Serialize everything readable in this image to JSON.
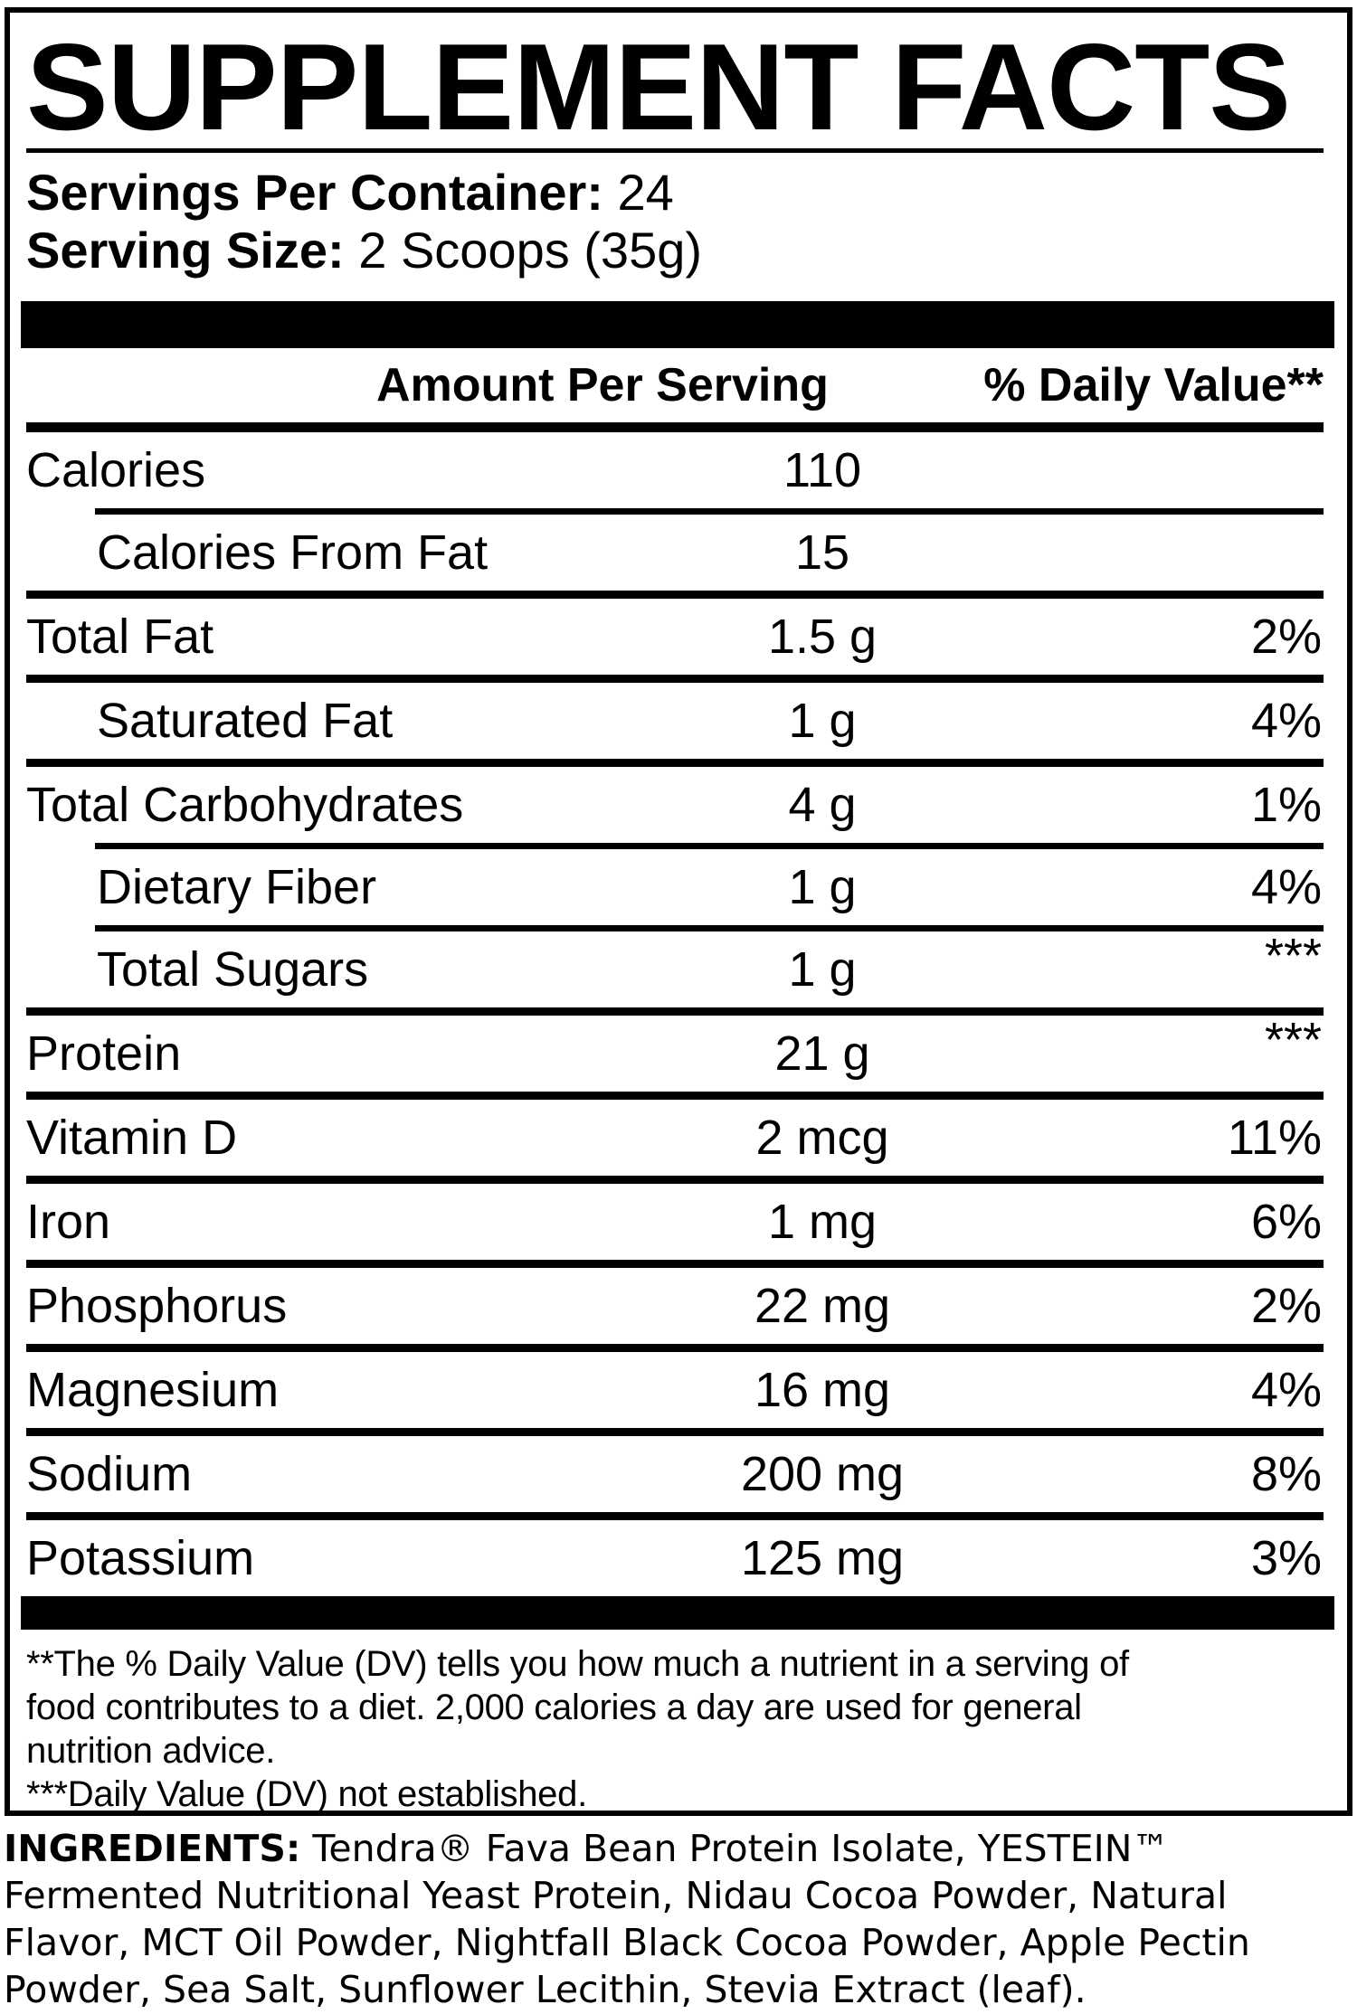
{
  "panel": {
    "title": "SUPPLEMENT FACTS",
    "servings_per_container": {
      "label": "Servings Per Container:",
      "value": "24"
    },
    "serving_size": {
      "label": "Serving Size:",
      "value": "2 Scoops (35g)"
    },
    "columns": {
      "amount": "Amount Per Serving",
      "daily_value": "% Daily Value**"
    },
    "rows": [
      {
        "label": "Calories",
        "indent": false,
        "amount": "110",
        "dv": "",
        "sep": "indent"
      },
      {
        "label": "Calories From Fat",
        "indent": true,
        "amount": "15",
        "dv": "",
        "sep": "full"
      },
      {
        "label": "Total Fat",
        "indent": false,
        "amount": "1.5 g",
        "dv": "2%",
        "sep": "full"
      },
      {
        "label": "Saturated Fat",
        "indent": true,
        "amount": "1 g",
        "dv": "4%",
        "sep": "full"
      },
      {
        "label": "Total Carbohydrates",
        "indent": false,
        "amount": "4 g",
        "dv": "1%",
        "sep": "indent"
      },
      {
        "label": "Dietary Fiber",
        "indent": true,
        "amount": "1 g",
        "dv": "4%",
        "sep": "indent"
      },
      {
        "label": "Total Sugars",
        "indent": true,
        "amount": "1 g",
        "dv": "***",
        "sep": "full"
      },
      {
        "label": "Protein",
        "indent": false,
        "amount": "21 g",
        "dv": "***",
        "sep": "full"
      },
      {
        "label": "Vitamin D",
        "indent": false,
        "amount": "2 mcg",
        "dv": "11%",
        "sep": "full"
      },
      {
        "label": "Iron",
        "indent": false,
        "amount": "1 mg",
        "dv": "6%",
        "sep": "full"
      },
      {
        "label": "Phosphorus",
        "indent": false,
        "amount": "22 mg",
        "dv": "2%",
        "sep": "full"
      },
      {
        "label": "Magnesium",
        "indent": false,
        "amount": "16 mg",
        "dv": "4%",
        "sep": "full"
      },
      {
        "label": "Sodium",
        "indent": false,
        "amount": "200 mg",
        "dv": "8%",
        "sep": "full"
      },
      {
        "label": "Potassium",
        "indent": false,
        "amount": "125 mg",
        "dv": "3%",
        "sep": "none"
      }
    ],
    "footnotes": [
      "**The % Daily Value (DV) tells you how much a nutrient in a serving of",
      "food contributes to a diet. 2,000 calories a day are used for general",
      "nutrition advice.",
      "***Daily Value (DV) not established."
    ]
  },
  "ingredients": {
    "label": "INGREDIENTS:",
    "lines": [
      "Tendra® Fava Bean Protein Isolate, YESTEIN™",
      "Fermented Nutritional Yeast Protein, Nidau Cocoa Powder, Natural",
      "Flavor, MCT Oil Powder, Nightfall Black Cocoa Powder, Apple Pectin",
      "Powder, Sea Salt, Sunflower Lecithin, Stevia Extract (leaf)."
    ]
  },
  "colors": {
    "ink": "#000000",
    "paper": "#ffffff"
  }
}
